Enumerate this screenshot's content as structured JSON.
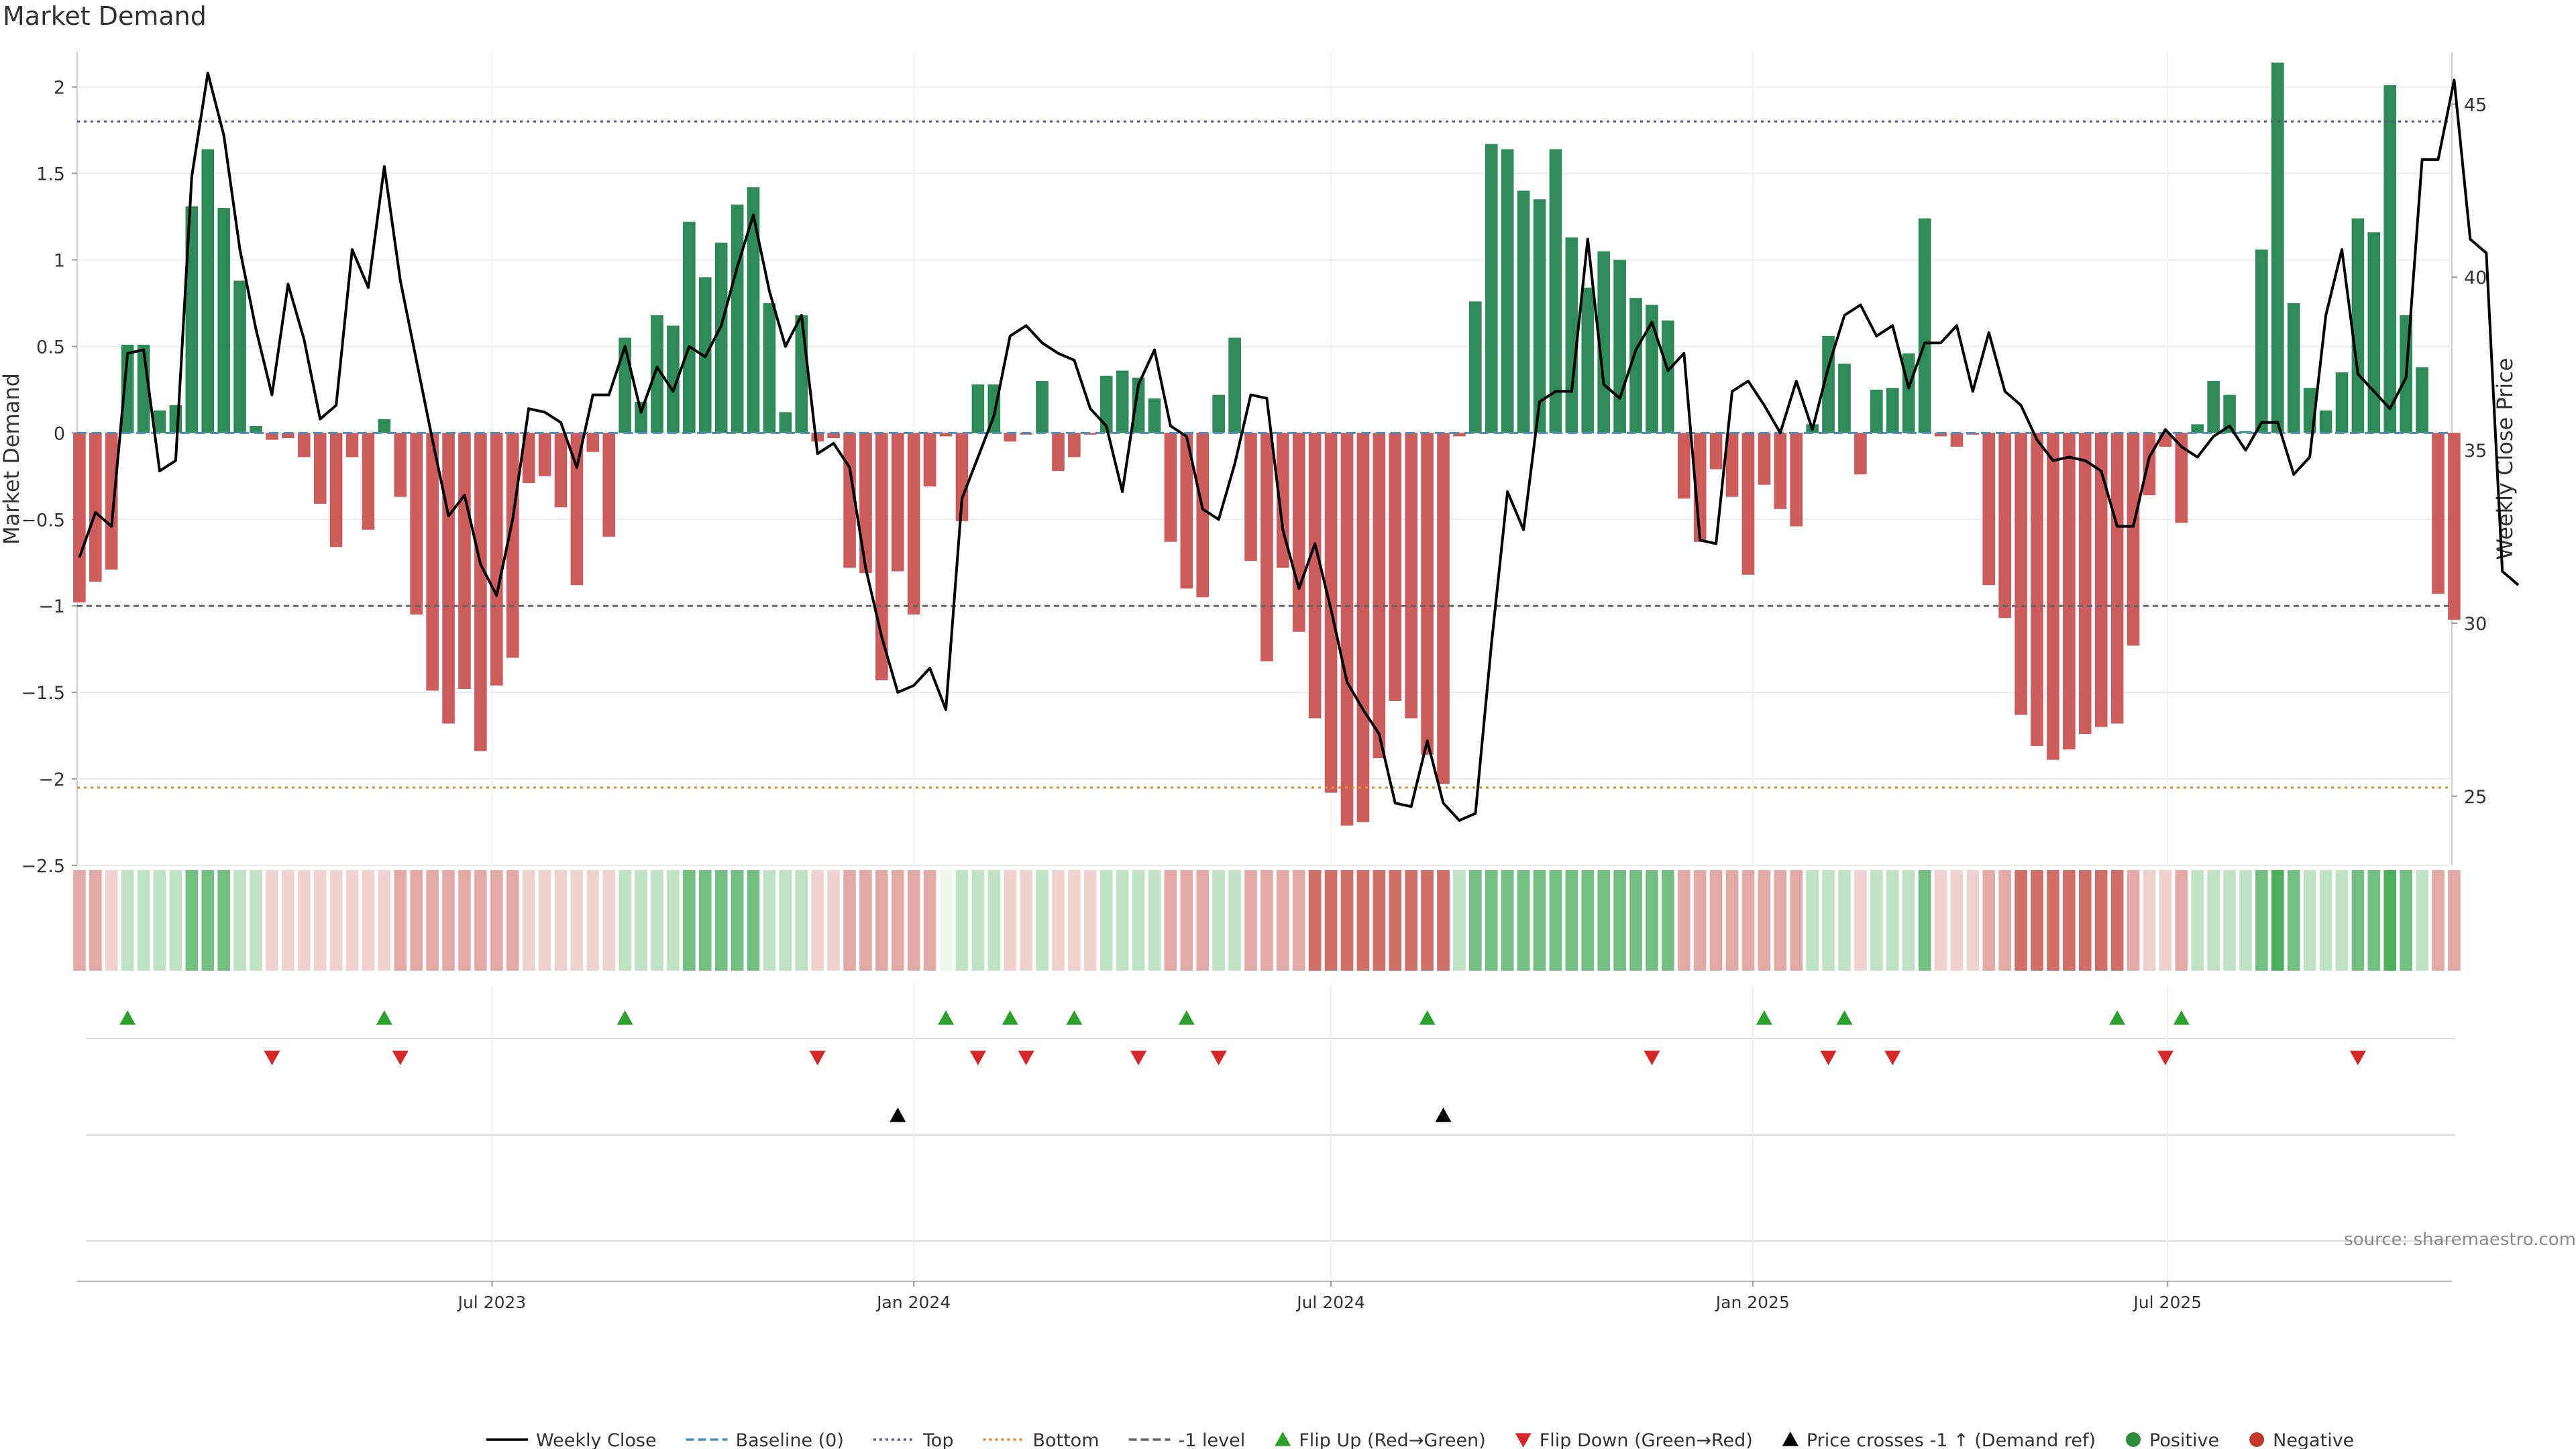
{
  "chart_data": {
    "type": "bar",
    "title": "Market Demand",
    "ylabel": "Market Demand",
    "y2label": "Weekly Close Price",
    "source": "source: sharemaestro.com",
    "ylim": [
      -2.5,
      2.2
    ],
    "y2lim": [
      23.0,
      46.5
    ],
    "ylim_note": "left axis in demand units, right axis in price units",
    "yticks": [
      2,
      1.5,
      1,
      0.5,
      0,
      -0.5,
      -1,
      -1.5,
      -2,
      -2.5
    ],
    "ytick_labels": [
      "2",
      "1.5",
      "1",
      "0.5",
      "0",
      "−0.5",
      "−1",
      "−1.5",
      "−2",
      "−2.5"
    ],
    "y2ticks": [
      45,
      40,
      35,
      30,
      25
    ],
    "y2tick_labels": [
      "45",
      "40",
      "35",
      "30",
      "25"
    ],
    "x_range": [
      "2023-01-01",
      "2025-11-02"
    ],
    "xtick_dates": [
      "2023-07-01",
      "2024-01-01",
      "2024-07-01",
      "2025-01-01",
      "2025-07-01"
    ],
    "xtick_labels": [
      "Jul 2023",
      "Jan 2024",
      "Jul 2024",
      "Jan 2025",
      "Jul 2025"
    ],
    "start_week": "2023-01-02",
    "reference_lines": {
      "top": 1.8,
      "bottom": -2.05,
      "minus_one": -1,
      "baseline": 0
    },
    "demand": [
      -0.98,
      -0.86,
      -0.79,
      0.51,
      0.51,
      0.13,
      0.16,
      1.31,
      1.64,
      1.3,
      0.88,
      0.04,
      -0.04,
      -0.03,
      -0.14,
      -0.41,
      -0.66,
      -0.14,
      -0.56,
      0.08,
      -0.37,
      -1.05,
      -1.49,
      -1.68,
      -1.48,
      -1.84,
      -1.46,
      -1.3,
      -0.29,
      -0.25,
      -0.43,
      -0.88,
      -0.11,
      -0.6,
      0.55,
      0.18,
      0.68,
      0.62,
      1.22,
      0.9,
      1.1,
      1.32,
      1.42,
      0.75,
      0.12,
      0.68,
      -0.05,
      -0.03,
      -0.78,
      -0.81,
      -1.43,
      -0.8,
      -1.05,
      -0.31,
      -0.02,
      -0.51,
      0.28,
      0.28,
      -0.05,
      -0.01,
      0.3,
      -0.22,
      -0.14,
      -0.01,
      0.33,
      0.36,
      0.32,
      0.2,
      -0.63,
      -0.9,
      -0.95,
      0.22,
      0.55,
      -0.74,
      -1.32,
      -0.78,
      -1.15,
      -1.65,
      -2.08,
      -2.27,
      -2.25,
      -1.88,
      -1.55,
      -1.65,
      -1.86,
      -2.03,
      -0.02,
      0.76,
      1.67,
      1.64,
      1.4,
      1.35,
      1.64,
      1.13,
      0.84,
      1.05,
      1.0,
      0.78,
      0.74,
      0.65,
      -0.38,
      -0.63,
      -0.21,
      -0.37,
      -0.82,
      -0.3,
      -0.44,
      -0.54,
      0.05,
      0.56,
      0.4,
      -0.24,
      0.25,
      0.26,
      0.46,
      1.24,
      -0.02,
      -0.08,
      -0.01,
      -0.88,
      -1.07,
      -1.63,
      -1.81,
      -1.89,
      -1.83,
      -1.74,
      -1.7,
      -1.68,
      -1.23,
      -0.36,
      -0.08,
      -0.52,
      0.05,
      0.3,
      0.22,
      0.01,
      1.06,
      2.14,
      0.75,
      0.26,
      0.13,
      0.35,
      1.24,
      1.16,
      2.01,
      0.68,
      0.38,
      -0.93,
      -1.08
    ],
    "price": [
      31.9,
      33.2,
      32.8,
      37.8,
      37.9,
      34.4,
      34.7,
      42.9,
      45.9,
      44.1,
      40.8,
      38.5,
      36.6,
      39.8,
      38.2,
      35.9,
      36.3,
      40.8,
      39.7,
      43.2,
      39.9,
      37.6,
      35.3,
      33.1,
      33.7,
      31.7,
      30.8,
      33.0,
      36.2,
      36.1,
      35.8,
      34.5,
      36.6,
      36.6,
      38.0,
      36.1,
      37.4,
      36.7,
      38.0,
      37.7,
      38.6,
      40.3,
      41.8,
      39.6,
      38.0,
      38.9,
      34.9,
      35.2,
      34.5,
      31.6,
      29.6,
      28.0,
      28.2,
      28.7,
      27.5,
      33.6,
      34.8,
      36.0,
      38.3,
      38.6,
      38.1,
      37.8,
      37.6,
      36.2,
      35.7,
      33.8,
      36.9,
      37.9,
      35.7,
      35.4,
      33.3,
      33.0,
      34.6,
      36.6,
      36.5,
      32.7,
      31.0,
      32.3,
      30.4,
      28.3,
      27.5,
      26.8,
      24.8,
      24.7,
      26.6,
      24.8,
      24.3,
      24.5,
      29.4,
      33.8,
      32.7,
      36.4,
      36.7,
      36.7,
      41.1,
      36.9,
      36.5,
      37.9,
      38.7,
      37.3,
      37.8,
      32.4,
      32.3,
      36.7,
      37.0,
      36.3,
      35.5,
      37.0,
      35.6,
      37.4,
      38.9,
      39.2,
      38.3,
      38.6,
      36.8,
      38.1,
      38.1,
      38.6,
      36.7,
      38.4,
      36.7,
      36.3,
      35.3,
      34.7,
      34.8,
      34.7,
      34.4,
      32.8,
      32.8,
      34.8,
      35.6,
      35.1,
      34.8,
      35.4,
      35.7,
      35.0,
      35.8,
      35.8,
      34.3,
      34.8,
      38.9,
      40.8,
      37.2,
      36.7,
      36.2,
      37.1,
      43.4,
      43.4,
      45.7,
      41.1,
      40.7,
      31.5,
      31.1
    ],
    "state_strip": [
      -2,
      -2,
      -1,
      1,
      1,
      1,
      1,
      2,
      2,
      2,
      1,
      1,
      -1,
      -1,
      -1,
      -1,
      -1,
      -1,
      -1,
      -1,
      -2,
      -2,
      -2,
      -2,
      -2,
      -2,
      -2,
      -2,
      -1,
      -1,
      -1,
      -1,
      -1,
      -1,
      1,
      1,
      1,
      1,
      2,
      2,
      2,
      2,
      2,
      1,
      1,
      1,
      -1,
      -1,
      -2,
      -2,
      -2,
      -2,
      -2,
      -2,
      0,
      1,
      1,
      1,
      -1,
      -1,
      1,
      -1,
      -1,
      -1,
      1,
      1,
      1,
      1,
      -2,
      -2,
      -2,
      1,
      1,
      -2,
      -2,
      -2,
      -2,
      -3,
      -3,
      -3,
      -3,
      -3,
      -3,
      -3,
      -3,
      -3,
      1,
      2,
      2,
      2,
      2,
      2,
      2,
      2,
      2,
      2,
      2,
      2,
      2,
      2,
      -2,
      -2,
      -2,
      -2,
      -2,
      -2,
      -2,
      -2,
      1,
      1,
      1,
      -1,
      1,
      1,
      1,
      2,
      -1,
      -1,
      -1,
      -2,
      -2,
      -3,
      -3,
      -3,
      -3,
      -3,
      -3,
      -3,
      -2,
      -1,
      -1,
      -2,
      1,
      1,
      1,
      1,
      2,
      3,
      2,
      1,
      1,
      1,
      2,
      2,
      3,
      2,
      1,
      -2,
      -2
    ],
    "flip_up_weeks": [
      3,
      19,
      34,
      54,
      58,
      62,
      69,
      84,
      105,
      110,
      127,
      131
    ],
    "flip_down_weeks": [
      12,
      20,
      46,
      56,
      59,
      66,
      71,
      98,
      109,
      113,
      130,
      142
    ],
    "price_cross_weeks": [
      51,
      85
    ],
    "legend": [
      {
        "label": "Weekly Close",
        "symbol": "line-solid",
        "color": "#000000"
      },
      {
        "label": "Baseline (0)",
        "symbol": "line-dash",
        "color": "#4c8fbf"
      },
      {
        "label": "Top",
        "symbol": "line-dot",
        "color": "#5a5a8a"
      },
      {
        "label": "Bottom",
        "symbol": "line-dot",
        "color": "#e08a2e"
      },
      {
        "label": "-1 level",
        "symbol": "line-dash",
        "color": "#666666"
      },
      {
        "label": "Flip Up (Red→Green)",
        "symbol": "triangle-up",
        "color": "#2ca02c"
      },
      {
        "label": "Flip Down (Green→Red)",
        "symbol": "triangle-down",
        "color": "#d62728"
      },
      {
        "label": "Price crosses -1 ↑ (Demand ref)",
        "symbol": "triangle-up",
        "color": "#000000"
      },
      {
        "label": "Positive",
        "symbol": "circle",
        "color": "#2e8b3e"
      },
      {
        "label": "Negative",
        "symbol": "circle",
        "color": "#c0392b"
      }
    ],
    "colors": {
      "positive_bar": "#2e8b57",
      "negative_bar": "#cd5c5c",
      "price_line": "#000000",
      "top_line": "#5a5a8a",
      "bottom_line": "#e08a2e",
      "minus_one_line": "#666666",
      "baseline": "#4c8fbf",
      "flip_up": "#2ca02c",
      "flip_down": "#d62728",
      "price_cross": "#000000",
      "strip_pos_3": "#4daf5e",
      "strip_pos_2": "#74c082",
      "strip_pos_1": "#bfe3c4",
      "strip_neutral": "#eef6ee",
      "strip_neg_1": "#f0d3d1",
      "strip_neg_2": "#e3aaa6",
      "strip_neg_3": "#cf6f67"
    }
  }
}
